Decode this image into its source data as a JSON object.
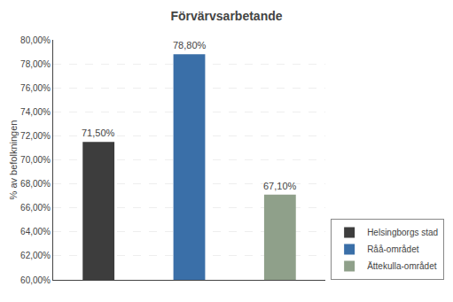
{
  "chart_data": {
    "type": "bar",
    "title": "Förvärvsarbetande",
    "categories": [
      "Helsingborgs stad",
      "Råå-området",
      "Ättekulla-området"
    ],
    "values": [
      71.5,
      78.8,
      67.1
    ],
    "value_labels": [
      "71,50%",
      "78,80%",
      "67,10%"
    ],
    "colors": [
      "#3d3d3d",
      "#3a6fa8",
      "#8fa08a"
    ],
    "ylabel": "% av befolkningen",
    "ylim": [
      60.0,
      80.0
    ],
    "yticks": [
      {
        "value": 60.0,
        "label": "60,00%"
      },
      {
        "value": 62.0,
        "label": "62,00%"
      },
      {
        "value": 64.0,
        "label": "64,00%"
      },
      {
        "value": 66.0,
        "label": "66,00%"
      },
      {
        "value": 68.0,
        "label": "68,00%"
      },
      {
        "value": 70.0,
        "label": "70,00%"
      },
      {
        "value": 72.0,
        "label": "72,00%"
      },
      {
        "value": 74.0,
        "label": "74,00%"
      },
      {
        "value": 76.0,
        "label": "76,00%"
      },
      {
        "value": 78.0,
        "label": "78,00%"
      },
      {
        "value": 80.0,
        "label": "80,00%"
      }
    ],
    "grid": true,
    "legend": "lower right",
    "data_labels": true,
    "tick_labels": "y"
  }
}
